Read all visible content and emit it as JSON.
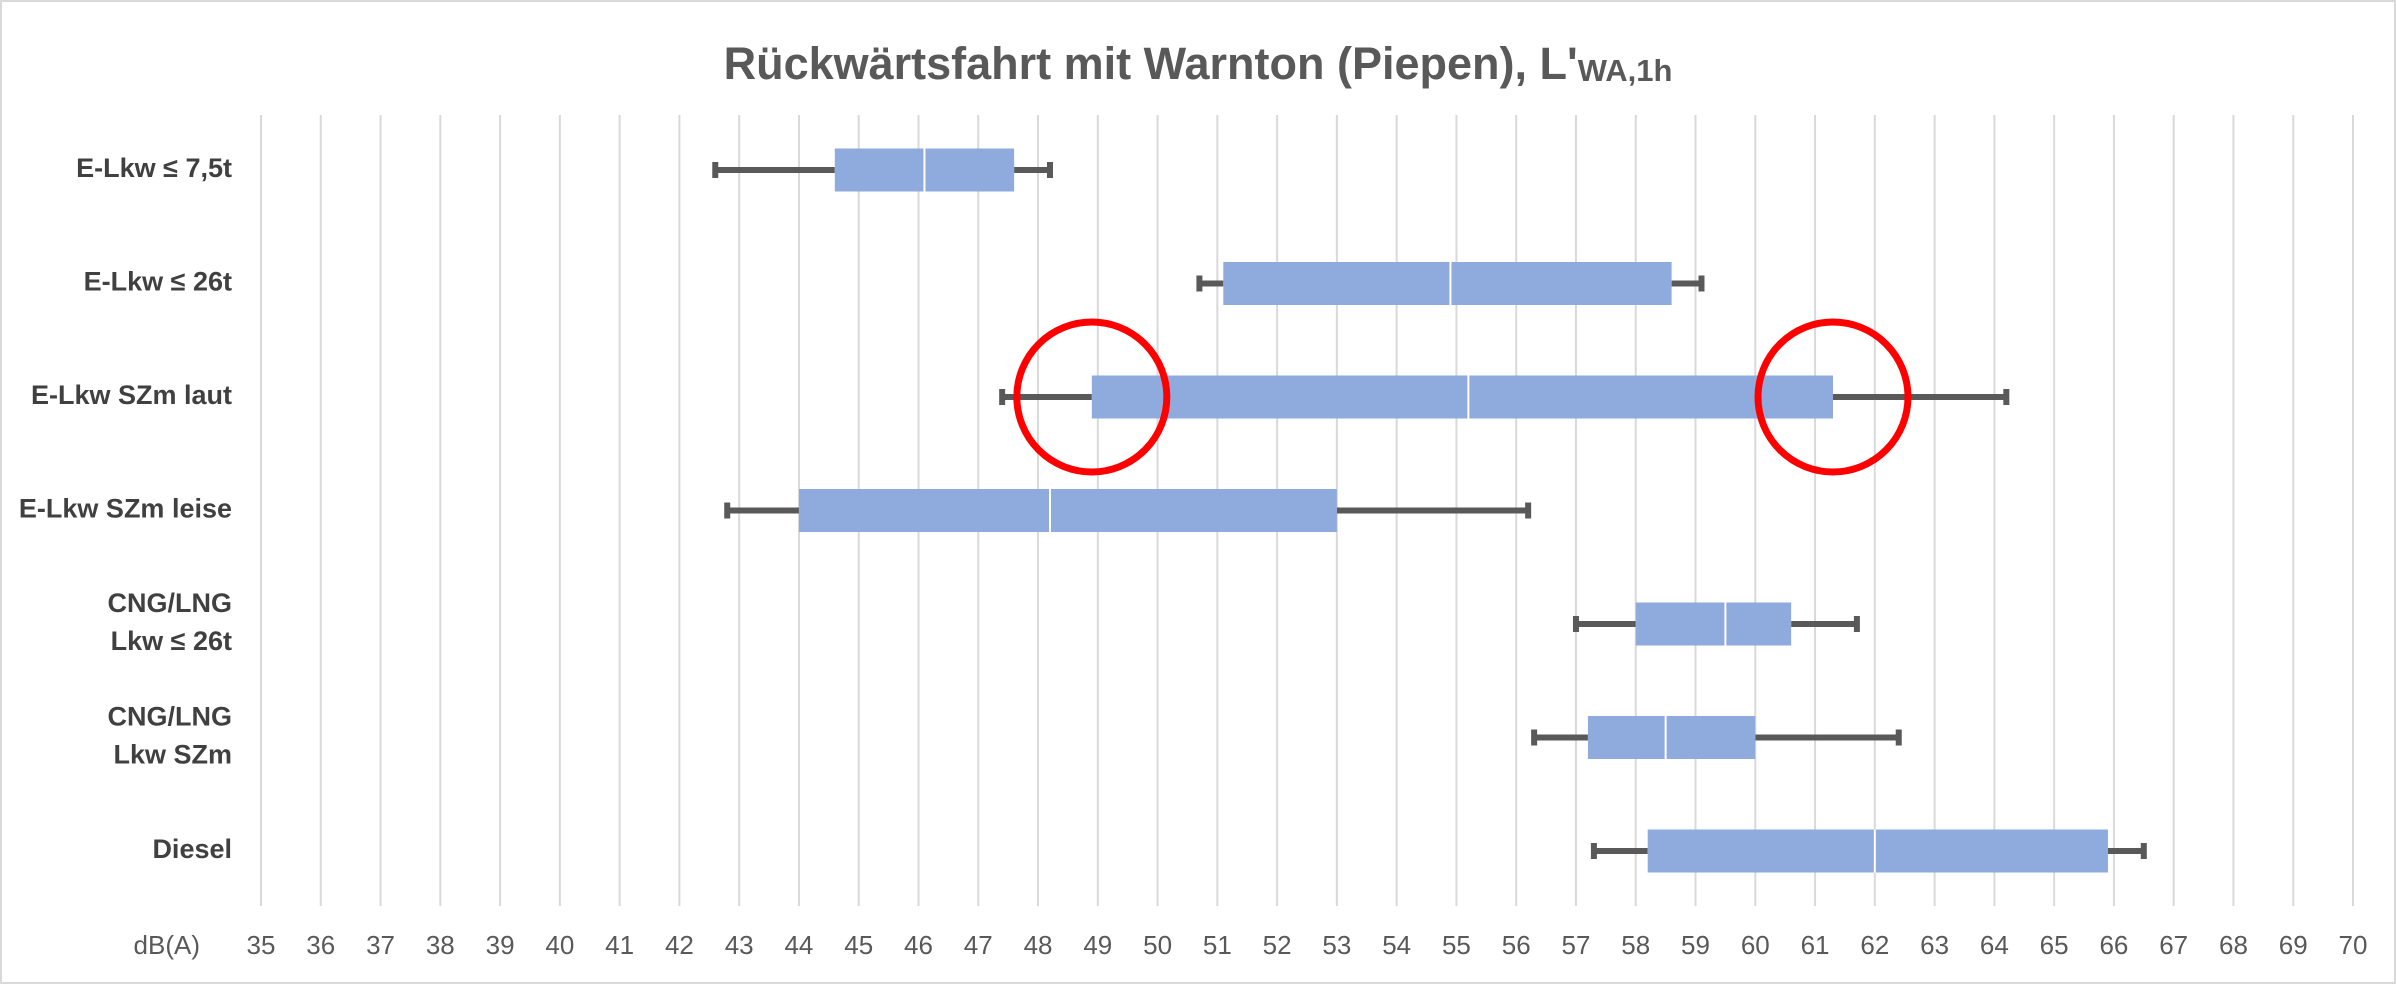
{
  "chart_data": {
    "type": "boxplot",
    "orientation": "horizontal",
    "title": "Rückwärtsfahrt mit Warnton (Piepen), L'",
    "title_subscript": "WA,1h",
    "x_label": "dB(A)",
    "categories": [
      [
        "E-Lkw ≤ 7,5t"
      ],
      [
        "E-Lkw ≤ 26t"
      ],
      [
        "E-Lkw SZm laut"
      ],
      [
        "E-Lkw SZm leise"
      ],
      [
        "CNG/LNG",
        "Lkw ≤ 26t"
      ],
      [
        "CNG/LNG",
        "Lkw SZm"
      ],
      [
        "Diesel"
      ]
    ],
    "boxes": [
      {
        "min": 42.6,
        "q1": 44.6,
        "median": 46.1,
        "q3": 47.6,
        "max": 48.2
      },
      {
        "min": 50.7,
        "q1": 51.1,
        "median": 54.9,
        "q3": 58.6,
        "max": 59.1
      },
      {
        "min": 47.4,
        "q1": 48.9,
        "median": 55.2,
        "q3": 61.3,
        "max": 64.2
      },
      {
        "min": 42.8,
        "q1": 44.0,
        "median": 48.2,
        "q3": 53.0,
        "max": 56.2
      },
      {
        "min": 57.0,
        "q1": 58.0,
        "median": 59.5,
        "q3": 60.6,
        "max": 61.7
      },
      {
        "min": 56.3,
        "q1": 57.2,
        "median": 58.5,
        "q3": 60.0,
        "max": 62.4
      },
      {
        "min": 57.3,
        "q1": 58.2,
        "median": 62.0,
        "q3": 65.9,
        "max": 66.5
      }
    ],
    "box_color": "#8faadc",
    "whisker_color": "#595959",
    "highlight_color": "#ff0000",
    "highlights": [
      {
        "box": 2,
        "stat": "q1"
      },
      {
        "box": 2,
        "stat": "q3"
      }
    ],
    "xlim": [
      35,
      70
    ],
    "xticks": [
      35,
      36,
      37,
      38,
      39,
      40,
      41,
      42,
      43,
      44,
      45,
      46,
      47,
      48,
      49,
      50,
      51,
      52,
      53,
      54,
      55,
      56,
      57,
      58,
      59,
      60,
      61,
      62,
      63,
      64,
      65,
      66,
      67,
      68,
      69,
      70
    ],
    "grid": true
  }
}
